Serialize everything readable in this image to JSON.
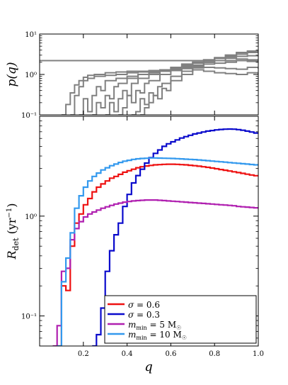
{
  "chart_data": [
    {
      "type": "line",
      "panel": "top",
      "ylabel": "p(q)",
      "yscale": "log",
      "xlim": [
        0.0,
        1.0
      ],
      "ylim": [
        0.1,
        10
      ],
      "y_ticks": [
        {
          "value": 10,
          "label": "10¹"
        },
        {
          "value": 1,
          "label": "10⁰"
        },
        {
          "value": 0.1,
          "label": "10⁻¹"
        }
      ],
      "series_color": "#808080",
      "series": [
        {
          "x": [
            0.1,
            0.12,
            0.14,
            0.16,
            0.18,
            0.2,
            0.22,
            0.25,
            0.3,
            0.35,
            0.4,
            0.45,
            0.5,
            0.55,
            0.6,
            0.65,
            0.7,
            0.75,
            0.8,
            0.85,
            0.9,
            0.95,
            1.0
          ],
          "values": [
            0.1,
            0.18,
            0.35,
            0.55,
            0.7,
            0.85,
            0.95,
            1.0,
            1.1,
            1.15,
            1.2,
            1.2,
            1.25,
            1.2,
            1.25,
            1.2,
            1.3,
            1.2,
            1.1,
            1.05,
            1.0,
            1.1,
            1.0
          ]
        },
        {
          "x": [
            0.14,
            0.16,
            0.18,
            0.2,
            0.22,
            0.25,
            0.3,
            0.35,
            0.4,
            0.45,
            0.5,
            0.55,
            0.6,
            0.65,
            0.7,
            0.75,
            0.8,
            0.85,
            0.9,
            0.95,
            1.0
          ],
          "values": [
            0.1,
            0.3,
            0.5,
            0.7,
            0.8,
            0.9,
            0.95,
            1.0,
            1.1,
            1.15,
            1.2,
            1.25,
            1.3,
            1.4,
            1.45,
            1.5,
            1.45,
            1.4,
            1.35,
            1.5,
            1.4
          ]
        },
        {
          "x": [
            0.18,
            0.2,
            0.22,
            0.24,
            0.26,
            0.28,
            0.3,
            0.35,
            0.4,
            0.45,
            0.5,
            0.55,
            0.6,
            0.65,
            0.7,
            0.75,
            0.8,
            0.85,
            0.9,
            0.95,
            1.0
          ],
          "values": [
            0.1,
            0.25,
            0.12,
            0.3,
            0.5,
            0.4,
            0.7,
            0.8,
            0.9,
            1.0,
            1.1,
            1.2,
            1.4,
            1.5,
            1.7,
            1.8,
            1.9,
            2.0,
            2.2,
            2.1,
            2.0
          ]
        },
        {
          "x": [
            0.24,
            0.26,
            0.28,
            0.3,
            0.32,
            0.34,
            0.36,
            0.4,
            0.45,
            0.5,
            0.55,
            0.6,
            0.65,
            0.7,
            0.75,
            0.8,
            0.85,
            0.9,
            0.95,
            1.0
          ],
          "values": [
            0.1,
            0.2,
            0.15,
            0.3,
            0.25,
            0.5,
            0.6,
            0.8,
            1.0,
            1.1,
            1.3,
            1.5,
            1.7,
            1.9,
            2.0,
            2.2,
            2.5,
            2.4,
            2.3,
            2.2
          ]
        },
        {
          "x": [
            0.3,
            0.32,
            0.34,
            0.36,
            0.38,
            0.4,
            0.42,
            0.45,
            0.5,
            0.55,
            0.6,
            0.65,
            0.7,
            0.75,
            0.8,
            0.85,
            0.9,
            0.95,
            1.0
          ],
          "values": [
            0.1,
            0.2,
            0.12,
            0.25,
            0.4,
            0.3,
            0.6,
            0.8,
            1.0,
            1.3,
            1.5,
            1.8,
            2.0,
            2.3,
            2.5,
            2.7,
            2.8,
            2.9,
            3.0
          ]
        },
        {
          "x": [
            0.36,
            0.38,
            0.4,
            0.42,
            0.44,
            0.46,
            0.48,
            0.5,
            0.55,
            0.6,
            0.65,
            0.7,
            0.75,
            0.8,
            0.85,
            0.9,
            0.95,
            1.0
          ],
          "values": [
            0.1,
            0.15,
            0.3,
            0.2,
            0.4,
            0.35,
            0.6,
            0.7,
            1.0,
            1.3,
            1.6,
            2.0,
            2.3,
            2.6,
            3.0,
            3.2,
            3.5,
            3.4
          ]
        },
        {
          "x": [
            0.42,
            0.44,
            0.46,
            0.48,
            0.5,
            0.52,
            0.54,
            0.56,
            0.6,
            0.65,
            0.7,
            0.75,
            0.8,
            0.85,
            0.9,
            0.95,
            1.0
          ],
          "values": [
            0.1,
            0.12,
            0.25,
            0.18,
            0.35,
            0.3,
            0.5,
            0.6,
            0.9,
            1.2,
            1.6,
            2.0,
            2.5,
            2.8,
            3.2,
            3.5,
            3.3
          ]
        },
        {
          "x": [
            0.46,
            0.48,
            0.5,
            0.52,
            0.54,
            0.56,
            0.58,
            0.6,
            0.65,
            0.7,
            0.75,
            0.8,
            0.85,
            0.9,
            0.95,
            1.0
          ],
          "values": [
            0.1,
            0.15,
            0.2,
            0.3,
            0.25,
            0.45,
            0.4,
            0.7,
            1.0,
            1.5,
            2.0,
            2.5,
            3.0,
            3.5,
            3.8,
            3.6
          ]
        },
        {
          "x": [
            0.0,
            0.06,
            0.1,
            0.15,
            0.2,
            0.25,
            0.3,
            0.35,
            0.4,
            0.45,
            0.5,
            0.55,
            0.6,
            0.65,
            0.7,
            0.75,
            0.8,
            0.85,
            0.9,
            0.95,
            1.0
          ],
          "values": [
            2.2,
            2.2,
            2.2,
            2.2,
            2.2,
            2.2,
            2.2,
            2.2,
            2.2,
            2.2,
            2.2,
            2.2,
            2.2,
            2.2,
            2.2,
            2.2,
            2.2,
            2.2,
            2.2,
            2.2,
            2.2
          ]
        }
      ]
    },
    {
      "type": "line",
      "panel": "bottom",
      "xlabel": "q",
      "ylabel": "R_det (yr⁻¹)",
      "yscale": "log",
      "xlim": [
        0.0,
        1.0
      ],
      "ylim": [
        0.05,
        10
      ],
      "x_ticks": [
        {
          "value": 0.2,
          "label": "0.2"
        },
        {
          "value": 0.4,
          "label": "0.4"
        },
        {
          "value": 0.6,
          "label": "0.6"
        },
        {
          "value": 0.8,
          "label": "0.8"
        },
        {
          "value": 1.0,
          "label": "1.0"
        }
      ],
      "y_ticks": [
        {
          "value": 1,
          "label": "10⁰"
        },
        {
          "value": 0.1,
          "label": "10⁻¹"
        }
      ],
      "legend_placement": "lower-right",
      "series": [
        {
          "name": "σ = 0.6",
          "color": "#ee1111",
          "x": [
            0.08,
            0.1,
            0.12,
            0.14,
            0.16,
            0.18,
            0.2,
            0.22,
            0.24,
            0.26,
            0.28,
            0.3,
            0.32,
            0.34,
            0.36,
            0.38,
            0.4,
            0.42,
            0.44,
            0.46,
            0.48,
            0.5,
            0.52,
            0.54,
            0.56,
            0.58,
            0.6,
            0.62,
            0.64,
            0.66,
            0.68,
            0.7,
            0.72,
            0.74,
            0.76,
            0.78,
            0.8,
            0.82,
            0.84,
            0.86,
            0.88,
            0.9,
            0.92,
            0.94,
            0.96,
            0.98,
            1.0
          ],
          "values": [
            0.05,
            0.2,
            0.18,
            0.5,
            0.85,
            1.05,
            1.3,
            1.5,
            1.75,
            1.95,
            2.1,
            2.25,
            2.4,
            2.5,
            2.62,
            2.75,
            2.85,
            2.95,
            3.05,
            3.12,
            3.18,
            3.22,
            3.26,
            3.28,
            3.3,
            3.31,
            3.31,
            3.3,
            3.28,
            3.26,
            3.23,
            3.2,
            3.16,
            3.12,
            3.08,
            3.03,
            2.98,
            2.93,
            2.88,
            2.83,
            2.78,
            2.73,
            2.68,
            2.63,
            2.58,
            2.54,
            2.5
          ]
        },
        {
          "name": "σ = 0.3",
          "color": "#0a0acc",
          "x": [
            0.24,
            0.26,
            0.28,
            0.3,
            0.32,
            0.34,
            0.36,
            0.38,
            0.4,
            0.42,
            0.44,
            0.46,
            0.48,
            0.5,
            0.52,
            0.54,
            0.56,
            0.58,
            0.6,
            0.62,
            0.64,
            0.66,
            0.68,
            0.7,
            0.72,
            0.74,
            0.76,
            0.78,
            0.8,
            0.82,
            0.84,
            0.86,
            0.88,
            0.9,
            0.92,
            0.94,
            0.96,
            0.98,
            1.0
          ],
          "values": [
            0.05,
            0.065,
            0.12,
            0.28,
            0.45,
            0.65,
            0.85,
            1.25,
            1.65,
            2.15,
            2.55,
            2.95,
            3.4,
            3.85,
            4.25,
            4.6,
            5.0,
            5.3,
            5.55,
            5.8,
            6.05,
            6.25,
            6.45,
            6.65,
            6.8,
            6.95,
            7.1,
            7.2,
            7.3,
            7.38,
            7.42,
            7.45,
            7.42,
            7.35,
            7.25,
            7.1,
            6.95,
            6.8,
            6.65
          ]
        },
        {
          "name": "m_min = 5 M☉",
          "color": "#b020b0",
          "x": [
            0.06,
            0.08,
            0.1,
            0.12,
            0.14,
            0.16,
            0.18,
            0.2,
            0.22,
            0.24,
            0.26,
            0.28,
            0.3,
            0.32,
            0.34,
            0.36,
            0.38,
            0.4,
            0.42,
            0.44,
            0.46,
            0.48,
            0.5,
            0.52,
            0.54,
            0.56,
            0.58,
            0.6,
            0.62,
            0.64,
            0.66,
            0.68,
            0.7,
            0.72,
            0.74,
            0.76,
            0.78,
            0.8,
            0.82,
            0.84,
            0.86,
            0.88,
            0.9,
            0.92,
            0.94,
            0.96,
            0.98,
            1.0
          ],
          "values": [
            0.05,
            0.08,
            0.28,
            0.3,
            0.58,
            0.75,
            0.88,
            0.98,
            1.05,
            1.1,
            1.15,
            1.2,
            1.24,
            1.28,
            1.32,
            1.35,
            1.38,
            1.4,
            1.42,
            1.43,
            1.44,
            1.45,
            1.45,
            1.45,
            1.44,
            1.43,
            1.42,
            1.41,
            1.4,
            1.39,
            1.38,
            1.37,
            1.36,
            1.35,
            1.34,
            1.33,
            1.32,
            1.31,
            1.3,
            1.29,
            1.28,
            1.27,
            1.25,
            1.24,
            1.23,
            1.22,
            1.21,
            1.2
          ]
        },
        {
          "name": "m_min = 10 M☉",
          "color": "#3399ee",
          "x": [
            0.08,
            0.1,
            0.12,
            0.14,
            0.16,
            0.18,
            0.2,
            0.22,
            0.24,
            0.26,
            0.28,
            0.3,
            0.32,
            0.34,
            0.36,
            0.38,
            0.4,
            0.42,
            0.44,
            0.46,
            0.48,
            0.5,
            0.52,
            0.54,
            0.56,
            0.58,
            0.6,
            0.62,
            0.64,
            0.66,
            0.68,
            0.7,
            0.72,
            0.74,
            0.76,
            0.78,
            0.8,
            0.82,
            0.84,
            0.86,
            0.88,
            0.9,
            0.92,
            0.94,
            0.96,
            0.98,
            1.0
          ],
          "values": [
            0.05,
            0.22,
            0.38,
            0.68,
            1.2,
            1.6,
            1.95,
            2.25,
            2.5,
            2.7,
            2.9,
            3.05,
            3.2,
            3.32,
            3.45,
            3.55,
            3.62,
            3.7,
            3.75,
            3.78,
            3.8,
            3.82,
            3.82,
            3.81,
            3.8,
            3.79,
            3.78,
            3.76,
            3.74,
            3.72,
            3.7,
            3.68,
            3.65,
            3.62,
            3.59,
            3.56,
            3.53,
            3.5,
            3.47,
            3.44,
            3.41,
            3.38,
            3.35,
            3.32,
            3.29,
            3.26,
            3.23
          ]
        }
      ]
    }
  ]
}
